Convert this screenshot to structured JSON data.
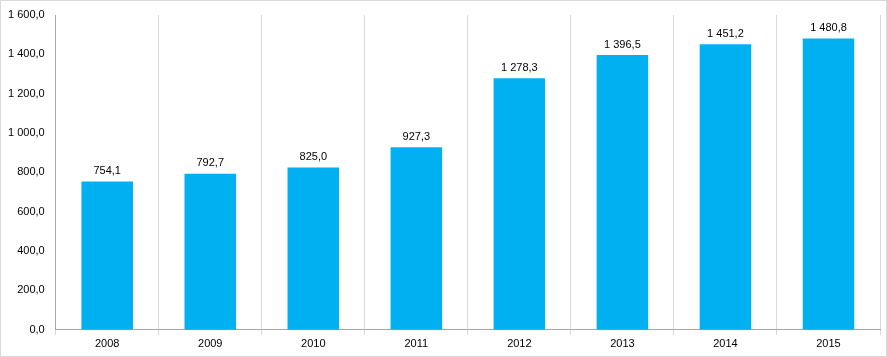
{
  "chart_data": {
    "type": "bar",
    "categories": [
      "2008",
      "2009",
      "2010",
      "2011",
      "2012",
      "2013",
      "2014",
      "2015"
    ],
    "values": [
      754.1,
      792.7,
      825.0,
      927.3,
      1278.3,
      1396.5,
      1451.2,
      1480.8
    ],
    "value_labels": [
      "754,1",
      "792,7",
      "825,0",
      "927,3",
      "1 278,3",
      "1 396,5",
      "1 451,2",
      "1 480,8"
    ],
    "data_labels": true,
    "color": "#00b0f0",
    "ylim": [
      0,
      1600
    ],
    "yticks": [
      {
        "value": 0,
        "label": "0,0"
      },
      {
        "value": 200,
        "label": "200,0"
      },
      {
        "value": 400,
        "label": "400,0"
      },
      {
        "value": 600,
        "label": "600,0"
      },
      {
        "value": 800,
        "label": "800,0"
      },
      {
        "value": 1000,
        "label": "1 000,0"
      },
      {
        "value": 1200,
        "label": "1 200,0"
      },
      {
        "value": 1400,
        "label": "1 400,0"
      },
      {
        "value": 1600,
        "label": "1 600,0"
      }
    ],
    "grid": true
  }
}
